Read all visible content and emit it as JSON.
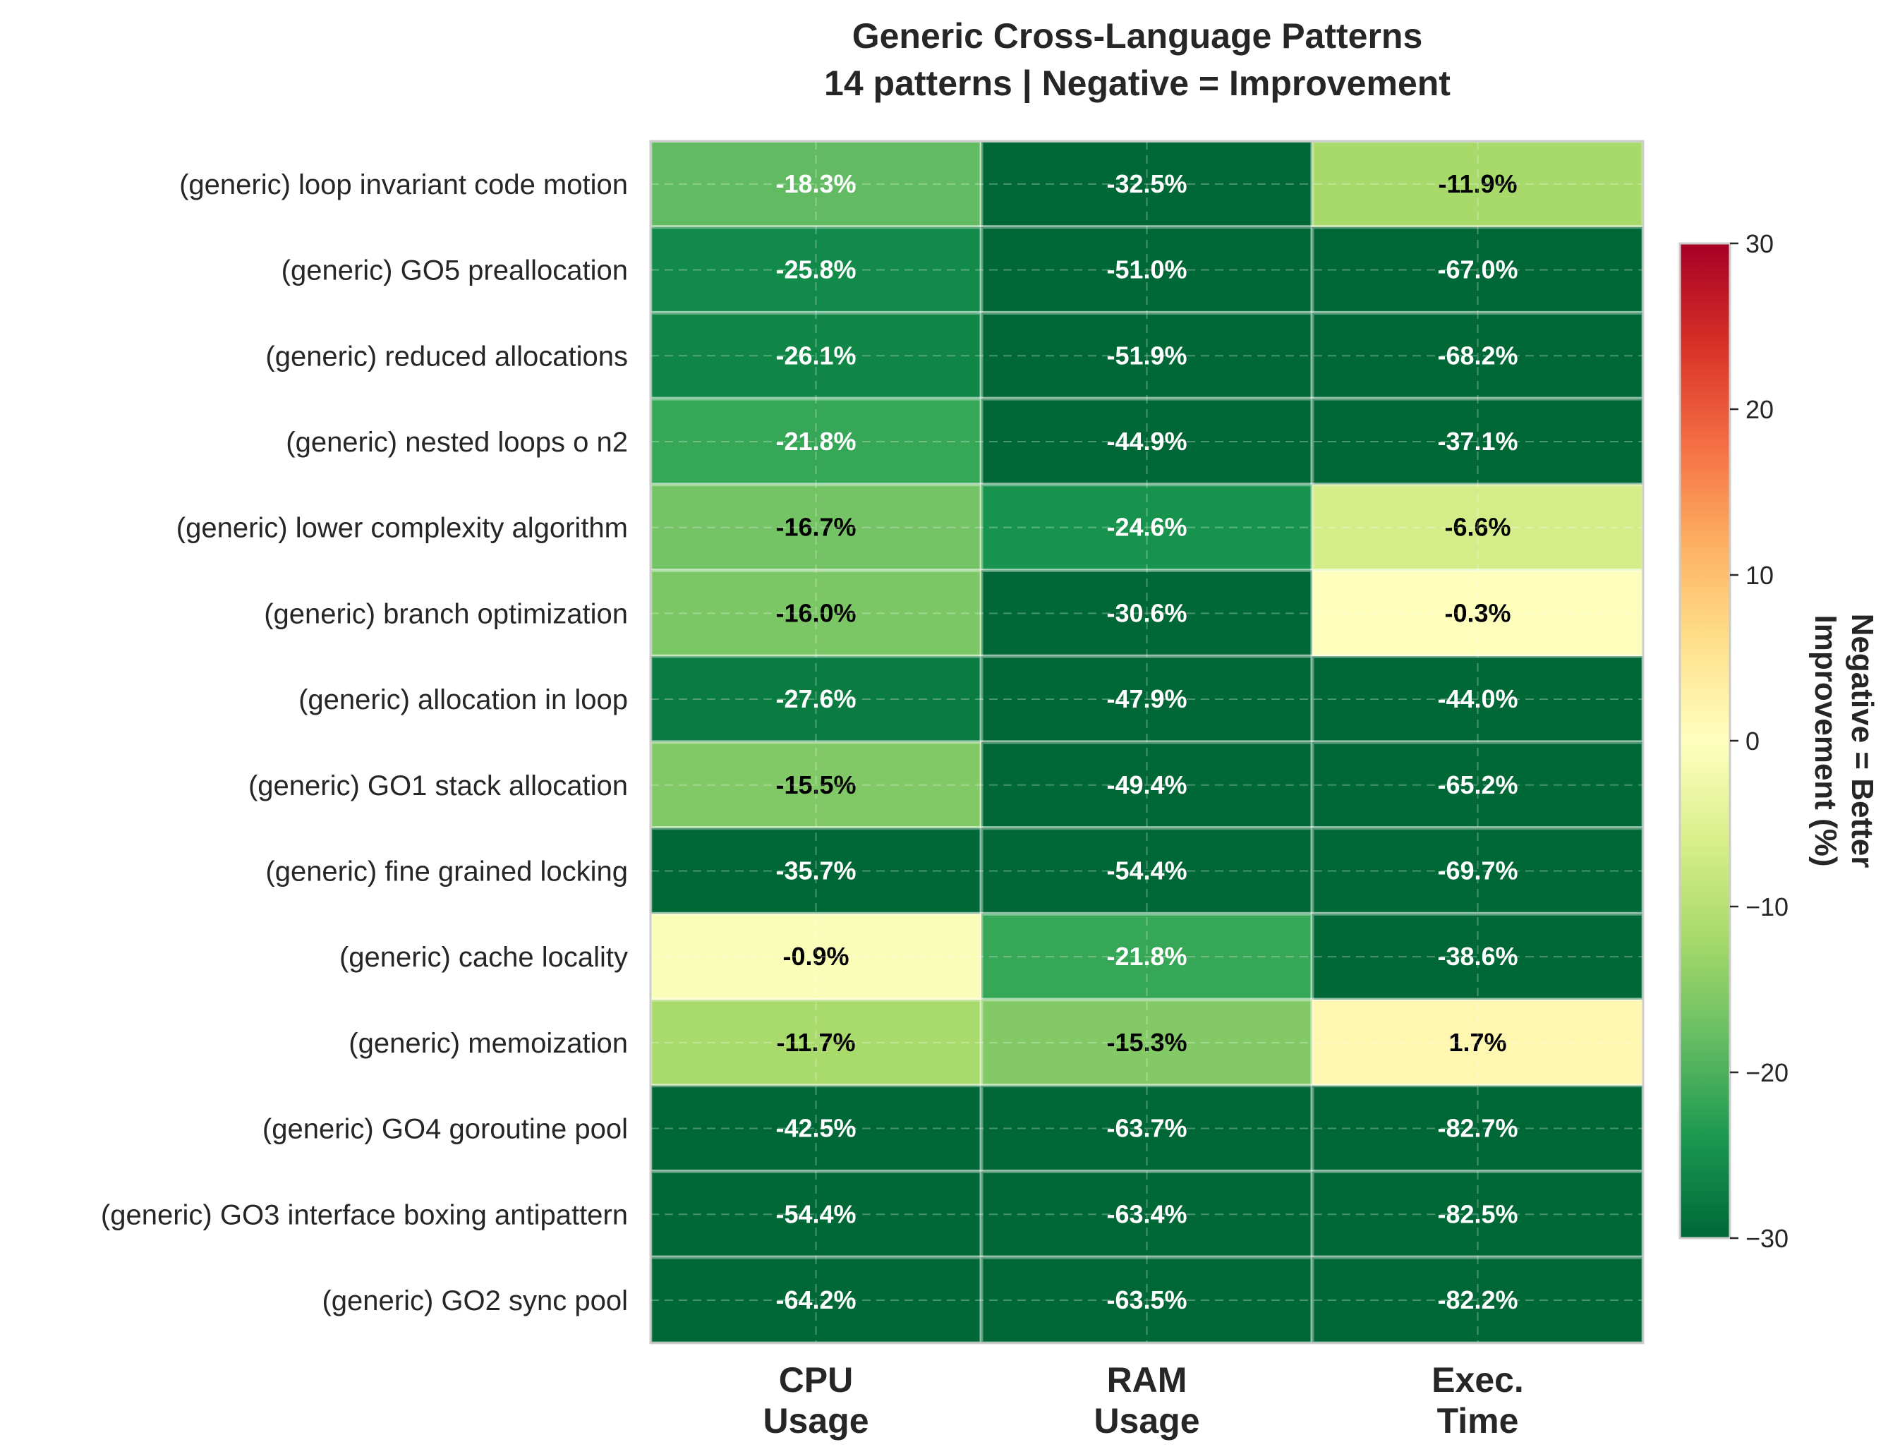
{
  "chart_data": {
    "type": "heatmap",
    "title": "Generic Cross-Language Patterns",
    "subtitle": "14 patterns | Negative = Improvement",
    "rows": [
      "(generic) loop invariant code motion",
      "(generic) GO5 preallocation",
      "(generic) reduced allocations",
      "(generic) nested loops o n2",
      "(generic) lower complexity algorithm",
      "(generic) branch optimization",
      "(generic) allocation in loop",
      "(generic) GO1 stack allocation",
      "(generic) fine grained locking",
      "(generic) cache locality",
      "(generic) memoization",
      "(generic) GO4 goroutine pool",
      "(generic) GO3 interface boxing antipattern",
      "(generic) GO2 sync pool"
    ],
    "columns": [
      [
        "CPU",
        "Usage"
      ],
      [
        "RAM",
        "Usage"
      ],
      [
        "Exec.",
        "Time"
      ]
    ],
    "values": [
      [
        -18.3,
        -32.5,
        -11.9
      ],
      [
        -25.8,
        -51.0,
        -67.0
      ],
      [
        -26.1,
        -51.9,
        -68.2
      ],
      [
        -21.8,
        -44.9,
        -37.1
      ],
      [
        -16.7,
        -24.6,
        -6.6
      ],
      [
        -16.0,
        -30.6,
        -0.3
      ],
      [
        -27.6,
        -47.9,
        -44.0
      ],
      [
        -15.5,
        -49.4,
        -65.2
      ],
      [
        -35.7,
        -54.4,
        -69.7
      ],
      [
        -0.9,
        -21.8,
        -38.6
      ],
      [
        -11.7,
        -15.3,
        1.7
      ],
      [
        -42.5,
        -63.7,
        -82.7
      ],
      [
        -54.4,
        -63.4,
        -82.5
      ],
      [
        -64.2,
        -63.5,
        -82.2
      ]
    ],
    "value_suffix": "%",
    "colormap": "RdYlGn_r",
    "vmin": -30,
    "vmax": 30,
    "colorbar": {
      "ticks": [
        30,
        20,
        10,
        0,
        -10,
        -20,
        -30
      ],
      "tick_labels": [
        "30",
        "20",
        "10",
        "0",
        "−10",
        "−20",
        "−30"
      ],
      "label_lines": [
        "Improvement (%)",
        "Negative = Better"
      ]
    },
    "grid": true
  }
}
